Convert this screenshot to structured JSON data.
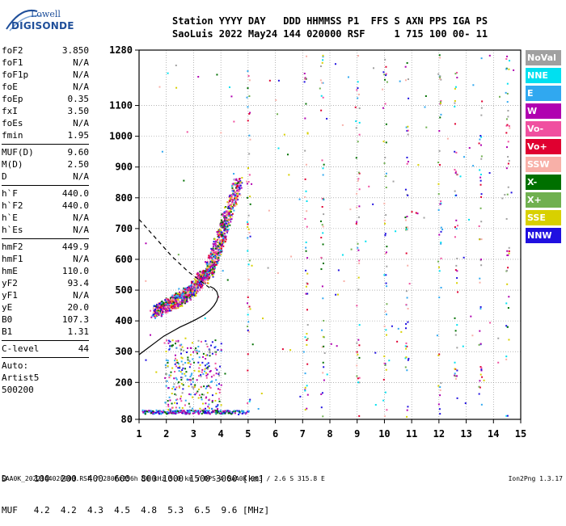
{
  "logo": {
    "line1": "Lowell",
    "line2": "DIGISONDE"
  },
  "header": {
    "line1": "Station YYYY DAY   DDD HHMMSS P1  FFS S AXN PPS IGA PS",
    "line2": "SaoLuis 2022 May24 144 020000 RSF     1 715 100 00- 11"
  },
  "params_group1": [
    {
      "k": "foF2",
      "v": "3.850"
    },
    {
      "k": "foF1",
      "v": "N/A"
    },
    {
      "k": "foF1p",
      "v": "N/A"
    },
    {
      "k": "foE",
      "v": "N/A"
    },
    {
      "k": "foEp",
      "v": "0.35"
    },
    {
      "k": "fxI",
      "v": "3.50"
    },
    {
      "k": "foEs",
      "v": "N/A"
    },
    {
      "k": "fmin",
      "v": "1.95"
    }
  ],
  "params_group2": [
    {
      "k": "MUF(D)",
      "v": "9.60"
    },
    {
      "k": "M(D)",
      "v": "2.50"
    },
    {
      "k": "D",
      "v": "N/A"
    }
  ],
  "params_group3": [
    {
      "k": "h`F",
      "v": "440.0"
    },
    {
      "k": "h`F2",
      "v": "440.0"
    },
    {
      "k": "h`E",
      "v": "N/A"
    },
    {
      "k": "h`Es",
      "v": "N/A"
    }
  ],
  "params_group4": [
    {
      "k": "hmF2",
      "v": "449.9"
    },
    {
      "k": "hmF1",
      "v": "N/A"
    },
    {
      "k": "hmE",
      "v": "110.0"
    },
    {
      "k": "yF2",
      "v": "93.4"
    },
    {
      "k": "yF1",
      "v": "N/A"
    },
    {
      "k": "yE",
      "v": "20.0"
    },
    {
      "k": "B0",
      "v": "107.3"
    },
    {
      "k": "B1",
      "v": "1.31"
    }
  ],
  "clevel": {
    "k": "C-level",
    "v": "44"
  },
  "auto": [
    "Auto:",
    "Artist5",
    "500200"
  ],
  "legend": [
    {
      "label": "NoVal",
      "color": "#a0a0a0"
    },
    {
      "label": "NNE",
      "color": "#00e0f0"
    },
    {
      "label": "E",
      "color": "#30a8f0"
    },
    {
      "label": "W",
      "color": "#b000b0"
    },
    {
      "label": "Vo-",
      "color": "#f050a0"
    },
    {
      "label": "Vo+",
      "color": "#e00030"
    },
    {
      "label": "SSW",
      "color": "#f8b0a8"
    },
    {
      "label": "X-",
      "color": "#007000"
    },
    {
      "label": "X+",
      "color": "#70b050"
    },
    {
      "label": "SSE",
      "color": "#d8d000"
    },
    {
      "label": "NNW",
      "color": "#2010e0"
    }
  ],
  "muf_table": {
    "row1": "D     100  200  400  600  800 1000 1500 3000 [km]",
    "row2": "MUF   4.2  4.2  4.3  4.5  4.8  5.3  6.5  9.6 [MHz]"
  },
  "footer": "SAA0K_2022144020000.RSF / 280fx256h 50 kHz 5.0 km / DPS-4 SAA0K 903 / 2.6 S 315.8 E",
  "footer_right": "Ion2Png 1.3.17",
  "chart_data": {
    "type": "scatter",
    "title": "",
    "xlabel": "",
    "ylabel": "",
    "xlim": [
      1,
      15
    ],
    "ylim": [
      80,
      1280
    ],
    "x_ticks": [
      "1",
      "2",
      "3",
      "4",
      "5",
      "6",
      "7",
      "8",
      "9",
      "10",
      "11",
      "12",
      "13",
      "14",
      "15"
    ],
    "y_ticks": [
      "80",
      "200",
      "300",
      "400",
      "500",
      "600",
      "700",
      "800",
      "900",
      "1000",
      "1100",
      "1280"
    ],
    "grid": "on",
    "legend_placement": "right",
    "trace_F2": {
      "description_color": "#b000b0",
      "x": [
        1.55,
        1.7,
        1.85,
        2.0,
        2.15,
        2.3,
        2.45,
        2.6,
        2.75,
        2.9,
        3.05,
        3.2,
        3.35,
        3.5,
        3.6,
        3.7,
        3.8,
        3.9,
        4.0,
        4.1,
        4.2,
        4.35,
        4.5,
        4.6
      ],
      "y": [
        430,
        440,
        445,
        450,
        458,
        465,
        472,
        480,
        490,
        500,
        515,
        530,
        545,
        560,
        580,
        600,
        625,
        650,
        680,
        710,
        740,
        780,
        820,
        860
      ]
    },
    "curve_profile_solid": {
      "x": [
        1.0,
        1.3,
        1.6,
        1.9,
        2.2,
        2.5,
        2.8,
        3.1,
        3.4,
        3.6,
        3.75,
        3.85,
        3.9,
        3.85,
        3.75,
        3.6
      ],
      "y": [
        290,
        310,
        330,
        350,
        365,
        380,
        392,
        405,
        420,
        435,
        450,
        465,
        480,
        495,
        505,
        512
      ]
    },
    "curve_profile_dashed": {
      "x": [
        1.0,
        1.3,
        1.6,
        1.9,
        2.2,
        2.5,
        2.8,
        3.1,
        3.4,
        3.7
      ],
      "y": [
        730,
        700,
        670,
        640,
        610,
        585,
        560,
        540,
        520,
        500
      ]
    },
    "trace_E_bottom": {
      "x": [
        1.1,
        1.5,
        2.0,
        2.5,
        3.0,
        3.5,
        4.0,
        4.5,
        5.0
      ],
      "y": [
        105,
        105,
        105,
        105,
        105,
        105,
        105,
        105,
        105
      ]
    }
  }
}
